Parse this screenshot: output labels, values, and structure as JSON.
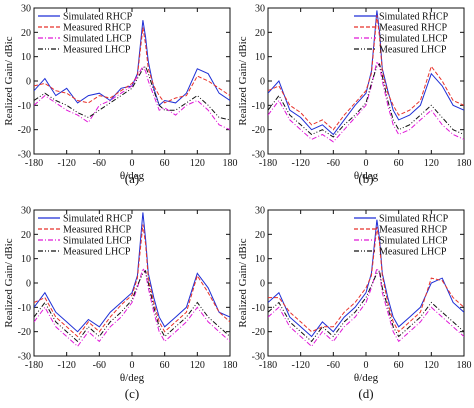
{
  "figure": {
    "panel_count": 4
  },
  "chart_data": [
    {
      "type": "line",
      "panel_label": "(a)",
      "xlabel": "θ/deg",
      "ylabel": "Realized Gain/ dBic",
      "xlim": [
        -180,
        180
      ],
      "ylim": [
        -30,
        30
      ],
      "xticks": [
        -180,
        -120,
        -60,
        0,
        60,
        120,
        180
      ],
      "yticks": [
        -30,
        -20,
        -10,
        0,
        10,
        20,
        30
      ],
      "legend_position": "top-left",
      "series": [
        {
          "name": "Simulated RHCP",
          "color": "#1f2fd6",
          "dash": "solid",
          "x": [
            -180,
            -160,
            -140,
            -120,
            -100,
            -80,
            -60,
            -40,
            -20,
            0,
            10,
            20,
            25,
            30,
            40,
            50,
            60,
            80,
            100,
            120,
            140,
            160,
            180
          ],
          "y": [
            -4,
            1,
            -6,
            -3,
            -9,
            -6,
            -5,
            -8,
            -3,
            -2,
            3,
            25,
            18,
            8,
            -3,
            -10,
            -8,
            -9,
            -5,
            5,
            3,
            -5,
            -8
          ]
        },
        {
          "name": "Measured RHCP",
          "color": "#e8322a",
          "dash": "dash",
          "x": [
            -180,
            -160,
            -140,
            -120,
            -100,
            -80,
            -60,
            -40,
            -20,
            0,
            10,
            20,
            25,
            30,
            40,
            50,
            60,
            80,
            100,
            120,
            140,
            160,
            180
          ],
          "y": [
            -2,
            -1,
            -4,
            -5,
            -8,
            -9,
            -6,
            -7,
            -4,
            -1,
            2,
            22,
            15,
            5,
            -2,
            -6,
            -9,
            -7,
            -6,
            2,
            0,
            -3,
            -6
          ]
        },
        {
          "name": "Simulated LHCP",
          "color": "#e018d8",
          "dash": "dashdot",
          "x": [
            -180,
            -160,
            -140,
            -120,
            -100,
            -80,
            -60,
            -40,
            -20,
            0,
            10,
            20,
            25,
            30,
            40,
            50,
            60,
            80,
            100,
            120,
            140,
            160,
            180
          ],
          "y": [
            -10,
            -6,
            -9,
            -12,
            -14,
            -17,
            -10,
            -8,
            -5,
            -2,
            2,
            6,
            4,
            0,
            -6,
            -12,
            -11,
            -14,
            -10,
            -8,
            -12,
            -18,
            -20
          ]
        },
        {
          "name": "Measured LHCP",
          "color": "#111111",
          "dash": "dashdotdot",
          "x": [
            -180,
            -160,
            -140,
            -120,
            -100,
            -80,
            -60,
            -40,
            -20,
            0,
            10,
            20,
            25,
            30,
            40,
            50,
            60,
            80,
            100,
            120,
            140,
            160,
            180
          ],
          "y": [
            -8,
            -5,
            -8,
            -10,
            -13,
            -15,
            -12,
            -9,
            -6,
            -3,
            1,
            5,
            6,
            3,
            -4,
            -10,
            -12,
            -12,
            -9,
            -6,
            -10,
            -15,
            -16
          ]
        }
      ]
    },
    {
      "type": "line",
      "panel_label": "(b)",
      "xlabel": "θ/deg",
      "ylabel": "Realized Gain/ dBic",
      "xlim": [
        -180,
        180
      ],
      "ylim": [
        -30,
        30
      ],
      "xticks": [
        -180,
        -120,
        -60,
        0,
        60,
        120,
        180
      ],
      "yticks": [
        -30,
        -20,
        -10,
        0,
        10,
        20,
        30
      ],
      "legend_position": "top-right",
      "series": [
        {
          "name": "Simulated RHCP",
          "color": "#1f2fd6",
          "dash": "solid",
          "x": [
            -180,
            -160,
            -140,
            -120,
            -100,
            -80,
            -60,
            -40,
            -20,
            0,
            10,
            20,
            25,
            30,
            40,
            50,
            60,
            80,
            100,
            120,
            140,
            160,
            180
          ],
          "y": [
            -5,
            0,
            -12,
            -15,
            -20,
            -18,
            -22,
            -16,
            -10,
            -5,
            4,
            29,
            20,
            5,
            -4,
            -12,
            -16,
            -14,
            -10,
            3,
            -2,
            -10,
            -12
          ]
        },
        {
          "name": "Measured RHCP",
          "color": "#e8322a",
          "dash": "dash",
          "x": [
            -180,
            -160,
            -140,
            -120,
            -100,
            -80,
            -60,
            -40,
            -20,
            0,
            10,
            20,
            25,
            30,
            40,
            50,
            60,
            80,
            100,
            120,
            140,
            160,
            180
          ],
          "y": [
            -4,
            -2,
            -10,
            -13,
            -18,
            -16,
            -20,
            -14,
            -9,
            -4,
            3,
            27,
            18,
            4,
            -5,
            -10,
            -14,
            -12,
            -8,
            6,
            0,
            -8,
            -10
          ]
        },
        {
          "name": "Simulated LHCP",
          "color": "#e018d8",
          "dash": "dashdot",
          "x": [
            -180,
            -160,
            -140,
            -120,
            -100,
            -80,
            -60,
            -40,
            -20,
            0,
            10,
            20,
            25,
            30,
            40,
            50,
            60,
            80,
            100,
            120,
            140,
            160,
            180
          ],
          "y": [
            -14,
            -8,
            -16,
            -20,
            -24,
            -22,
            -25,
            -20,
            -15,
            -10,
            -2,
            8,
            6,
            0,
            -10,
            -18,
            -22,
            -20,
            -16,
            -12,
            -18,
            -22,
            -24
          ]
        },
        {
          "name": "Measured LHCP",
          "color": "#111111",
          "dash": "dashdotdot",
          "x": [
            -180,
            -160,
            -140,
            -120,
            -100,
            -80,
            -60,
            -40,
            -20,
            0,
            10,
            20,
            25,
            30,
            40,
            50,
            60,
            80,
            100,
            120,
            140,
            160,
            180
          ],
          "y": [
            -12,
            -6,
            -14,
            -18,
            -22,
            -20,
            -23,
            -18,
            -14,
            -9,
            -1,
            6,
            7,
            2,
            -8,
            -16,
            -20,
            -18,
            -14,
            -10,
            -15,
            -20,
            -22
          ]
        }
      ]
    },
    {
      "type": "line",
      "panel_label": "(c)",
      "xlabel": "θ/deg",
      "ylabel": "Realized Gain/ dBic",
      "xlim": [
        -180,
        180
      ],
      "ylim": [
        -30,
        30
      ],
      "xticks": [
        -180,
        -120,
        -60,
        0,
        60,
        120,
        180
      ],
      "yticks": [
        -30,
        -20,
        -10,
        0,
        10,
        20,
        30
      ],
      "legend_position": "top-left",
      "series": [
        {
          "name": "Simulated RHCP",
          "color": "#1f2fd6",
          "dash": "solid",
          "x": [
            -180,
            -160,
            -140,
            -120,
            -100,
            -80,
            -60,
            -40,
            -20,
            0,
            10,
            20,
            25,
            30,
            40,
            50,
            60,
            80,
            100,
            120,
            140,
            160,
            180
          ],
          "y": [
            -10,
            -4,
            -12,
            -16,
            -20,
            -15,
            -18,
            -12,
            -8,
            -4,
            3,
            29,
            18,
            4,
            -6,
            -14,
            -18,
            -14,
            -10,
            4,
            -2,
            -12,
            -14
          ]
        },
        {
          "name": "Measured RHCP",
          "color": "#e8322a",
          "dash": "dash",
          "x": [
            -180,
            -160,
            -140,
            -120,
            -100,
            -80,
            -60,
            -40,
            -20,
            0,
            10,
            20,
            25,
            30,
            40,
            50,
            60,
            80,
            100,
            120,
            140,
            160,
            180
          ],
          "y": [
            -8,
            -6,
            -14,
            -18,
            -22,
            -16,
            -20,
            -14,
            -9,
            -5,
            2,
            24,
            16,
            2,
            -8,
            -16,
            -20,
            -16,
            -12,
            3,
            -4,
            -12,
            -16
          ]
        },
        {
          "name": "Simulated LHCP",
          "color": "#e018d8",
          "dash": "dashdot",
          "x": [
            -180,
            -160,
            -140,
            -120,
            -100,
            -80,
            -60,
            -40,
            -20,
            0,
            10,
            20,
            25,
            30,
            40,
            50,
            60,
            80,
            100,
            120,
            140,
            160,
            180
          ],
          "y": [
            -16,
            -10,
            -18,
            -22,
            -26,
            -20,
            -24,
            -18,
            -14,
            -8,
            -2,
            6,
            4,
            -2,
            -12,
            -20,
            -24,
            -20,
            -16,
            -10,
            -16,
            -20,
            -24
          ]
        },
        {
          "name": "Measured LHCP",
          "color": "#111111",
          "dash": "dashdotdot",
          "x": [
            -180,
            -160,
            -140,
            -120,
            -100,
            -80,
            -60,
            -40,
            -20,
            0,
            10,
            20,
            25,
            30,
            40,
            50,
            60,
            80,
            100,
            120,
            140,
            160,
            180
          ],
          "y": [
            -14,
            -8,
            -16,
            -20,
            -24,
            -18,
            -22,
            -16,
            -12,
            -7,
            -1,
            4,
            5,
            0,
            -10,
            -18,
            -22,
            -18,
            -14,
            -8,
            -14,
            -18,
            -22
          ]
        }
      ]
    },
    {
      "type": "line",
      "panel_label": "(d)",
      "xlabel": "θ/deg",
      "ylabel": "Realized Gain/ dBic",
      "xlim": [
        -180,
        180
      ],
      "ylim": [
        -30,
        30
      ],
      "xticks": [
        -180,
        -120,
        -60,
        0,
        60,
        120,
        180
      ],
      "yticks": [
        -30,
        -20,
        -10,
        0,
        10,
        20,
        30
      ],
      "legend_position": "top-right",
      "series": [
        {
          "name": "Simulated RHCP",
          "color": "#1f2fd6",
          "dash": "solid",
          "x": [
            -180,
            -160,
            -140,
            -120,
            -100,
            -80,
            -60,
            -40,
            -20,
            0,
            10,
            20,
            25,
            30,
            40,
            50,
            60,
            80,
            100,
            120,
            140,
            160,
            180
          ],
          "y": [
            -8,
            -4,
            -14,
            -18,
            -22,
            -16,
            -20,
            -14,
            -10,
            -4,
            4,
            26,
            18,
            4,
            -6,
            -14,
            -18,
            -14,
            -10,
            0,
            2,
            -8,
            -12
          ]
        },
        {
          "name": "Measured RHCP",
          "color": "#e8322a",
          "dash": "dash",
          "x": [
            -180,
            -160,
            -140,
            -120,
            -100,
            -80,
            -60,
            -40,
            -20,
            0,
            10,
            20,
            25,
            30,
            40,
            50,
            60,
            80,
            100,
            120,
            140,
            160,
            180
          ],
          "y": [
            -6,
            -6,
            -12,
            -16,
            -20,
            -18,
            -18,
            -12,
            -8,
            -2,
            3,
            23,
            16,
            3,
            -8,
            -16,
            -20,
            -16,
            -12,
            2,
            1,
            -6,
            -10
          ]
        },
        {
          "name": "Simulated LHCP",
          "color": "#e018d8",
          "dash": "dashdot",
          "x": [
            -180,
            -160,
            -140,
            -120,
            -100,
            -80,
            -60,
            -40,
            -20,
            0,
            10,
            20,
            25,
            30,
            40,
            50,
            60,
            80,
            100,
            120,
            140,
            160,
            180
          ],
          "y": [
            -14,
            -10,
            -18,
            -22,
            -26,
            -20,
            -24,
            -18,
            -14,
            -8,
            -2,
            6,
            4,
            -4,
            -12,
            -20,
            -24,
            -20,
            -16,
            -10,
            -14,
            -18,
            -22
          ]
        },
        {
          "name": "Measured LHCP",
          "color": "#111111",
          "dash": "dashdotdot",
          "x": [
            -180,
            -160,
            -140,
            -120,
            -100,
            -80,
            -60,
            -40,
            -20,
            0,
            10,
            20,
            25,
            30,
            40,
            50,
            60,
            80,
            100,
            120,
            140,
            160,
            180
          ],
          "y": [
            -12,
            -8,
            -16,
            -20,
            -24,
            -18,
            -22,
            -16,
            -12,
            -6,
            -1,
            4,
            5,
            -2,
            -10,
            -18,
            -22,
            -18,
            -14,
            -8,
            -12,
            -16,
            -20
          ]
        }
      ]
    }
  ]
}
